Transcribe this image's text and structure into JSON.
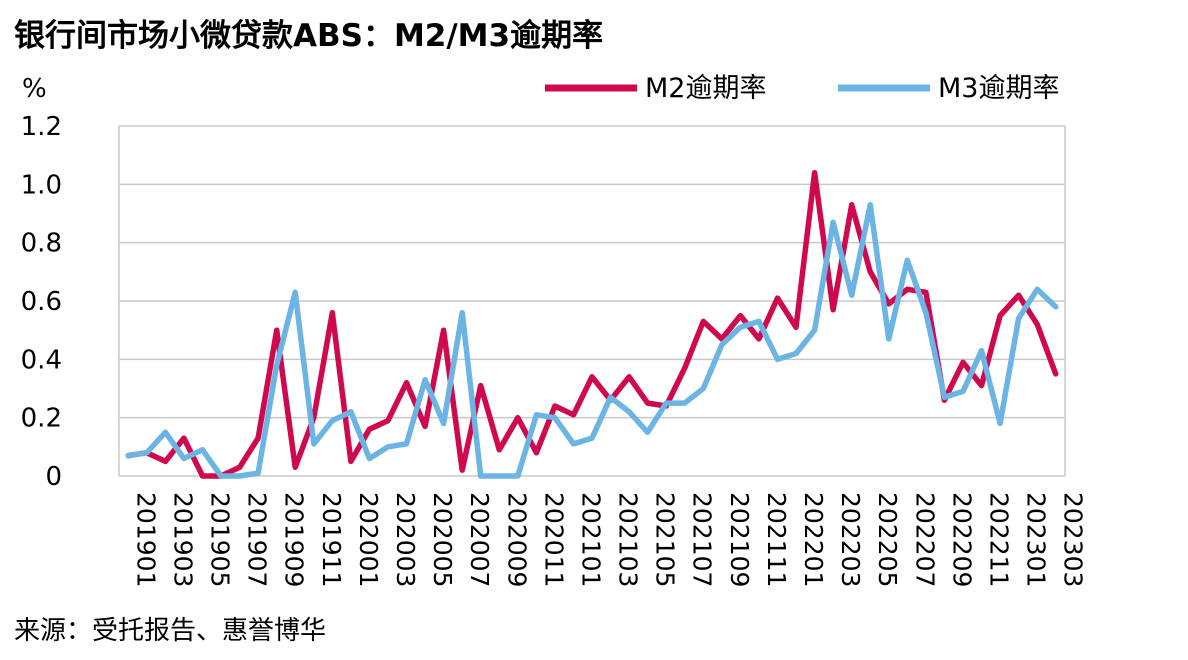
{
  "title": "银行间市场小微贷款ABS：M2/M3逾期率",
  "unit": "%",
  "source": "来源：受托报告、惠誉博华",
  "colors": {
    "m2": "#d0094f",
    "m3": "#6cb4e4",
    "grid": "#c8c8c8"
  },
  "chart_data": {
    "type": "line",
    "ylim": [
      0,
      1.2
    ],
    "yticks": [
      "0",
      "0.2",
      "0.4",
      "0.6",
      "0.8",
      "1.0",
      "1.2"
    ],
    "xtick_labels": [
      "201901",
      "201903",
      "201905",
      "201907",
      "201909",
      "201911",
      "202001",
      "202003",
      "202005",
      "202007",
      "202009",
      "202011",
      "202101",
      "202103",
      "202105",
      "202107",
      "202109",
      "202111",
      "202201",
      "202203",
      "202205",
      "202207",
      "202209",
      "202211",
      "202301",
      "202303"
    ],
    "grid": true,
    "legend_position": "top-right",
    "x": [
      "201901",
      "201902",
      "201903",
      "201904",
      "201905",
      "201906",
      "201907",
      "201908",
      "201909",
      "201910",
      "201911",
      "201912",
      "202001",
      "202002",
      "202003",
      "202004",
      "202005",
      "202006",
      "202007",
      "202008",
      "202009",
      "202010",
      "202011",
      "202012",
      "202101",
      "202102",
      "202103",
      "202104",
      "202105",
      "202106",
      "202107",
      "202108",
      "202109",
      "202110",
      "202111",
      "202112",
      "202201",
      "202202",
      "202203",
      "202204",
      "202205",
      "202206",
      "202207",
      "202208",
      "202209",
      "202210",
      "202211",
      "202212",
      "202301",
      "202302",
      "202303"
    ],
    "series": [
      {
        "name": "M2逾期率",
        "color_key": "m2",
        "values": [
          0.07,
          0.08,
          0.05,
          0.13,
          0.0,
          0.0,
          0.03,
          0.13,
          0.5,
          0.03,
          0.2,
          0.56,
          0.05,
          0.16,
          0.19,
          0.32,
          0.17,
          0.5,
          0.02,
          0.31,
          0.09,
          0.2,
          0.08,
          0.24,
          0.21,
          0.34,
          0.26,
          0.34,
          0.25,
          0.24,
          0.37,
          0.53,
          0.47,
          0.55,
          0.47,
          0.61,
          0.51,
          1.04,
          0.57,
          0.93,
          0.7,
          0.59,
          0.64,
          0.63,
          0.26,
          0.39,
          0.31,
          0.55,
          0.62,
          0.52,
          0.35
        ]
      },
      {
        "name": "M3逾期率",
        "color_key": "m3",
        "values": [
          0.07,
          0.08,
          0.15,
          0.06,
          0.09,
          0.0,
          0.0,
          0.01,
          0.38,
          0.63,
          0.11,
          0.19,
          0.22,
          0.06,
          0.1,
          0.11,
          0.33,
          0.18,
          0.56,
          0.0,
          0.0,
          0.0,
          0.21,
          0.2,
          0.11,
          0.13,
          0.27,
          0.22,
          0.15,
          0.25,
          0.25,
          0.3,
          0.45,
          0.51,
          0.53,
          0.4,
          0.42,
          0.5,
          0.87,
          0.62,
          0.93,
          0.47,
          0.74,
          0.56,
          0.27,
          0.29,
          0.43,
          0.18,
          0.54,
          0.64,
          0.58
        ]
      }
    ]
  }
}
